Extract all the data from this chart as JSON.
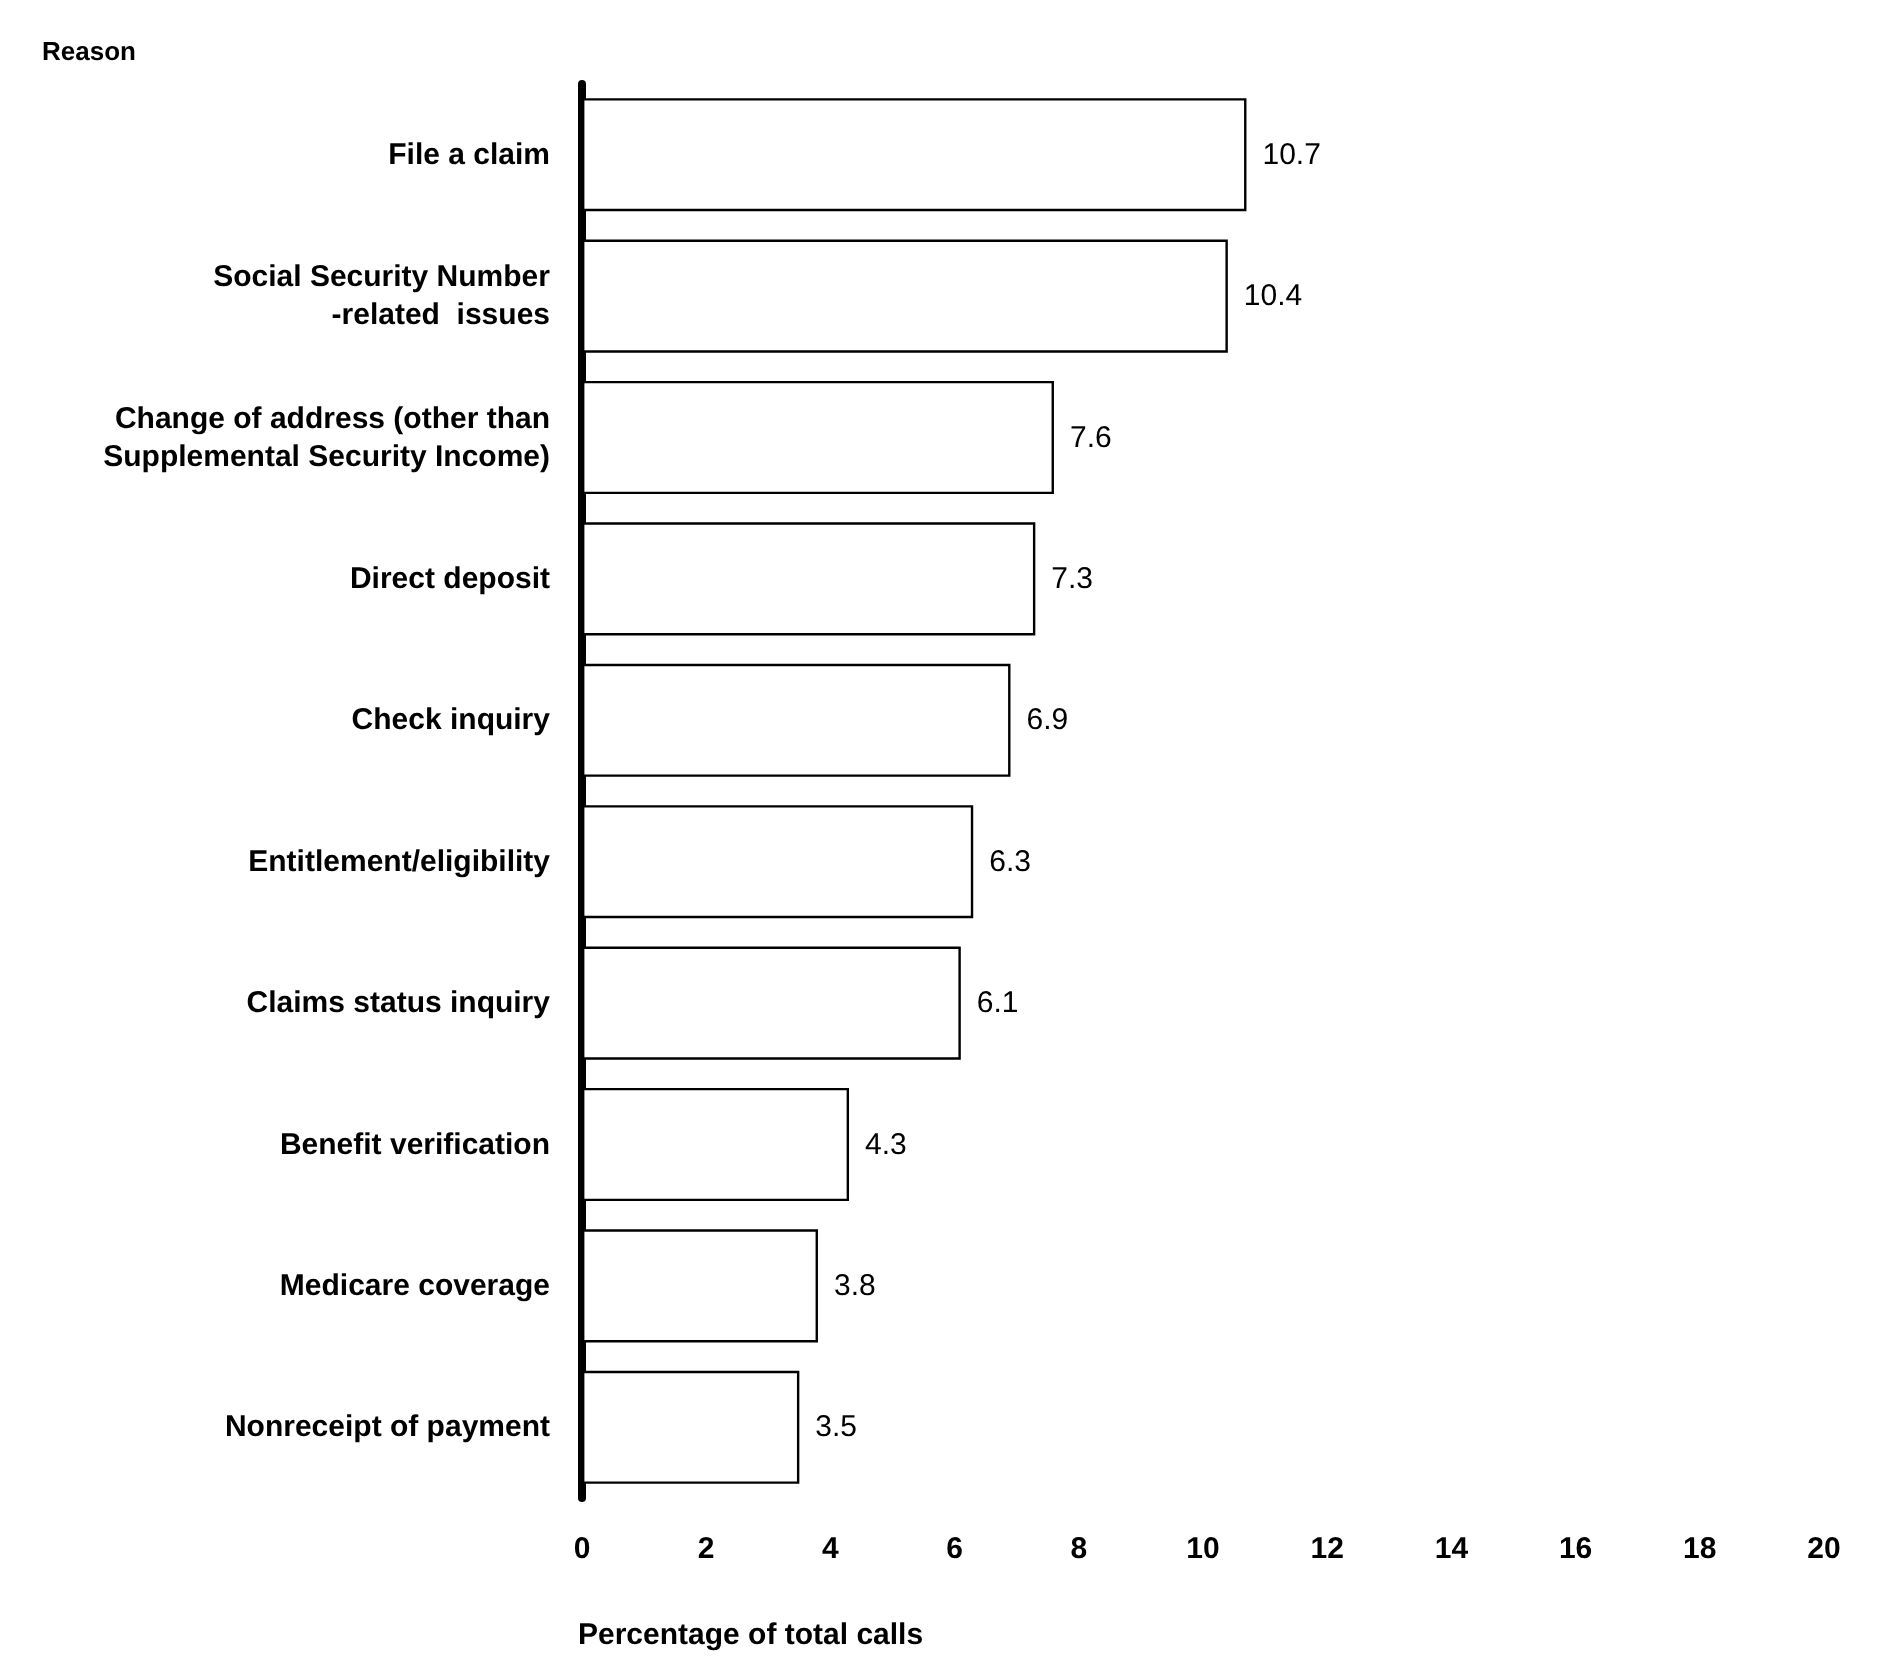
{
  "chart_data": {
    "type": "bar",
    "orientation": "horizontal",
    "ylabel": "Reason",
    "xlabel": "Percentage of total calls",
    "categories": [
      "File a claim",
      "Social Security Number\n-related  issues",
      "Change of address (other than\nSupplemental Security Income)",
      "Direct deposit",
      "Check inquiry",
      "Entitlement/eligibility",
      "Claims status inquiry",
      "Benefit verification",
      "Medicare coverage",
      "Nonreceipt of payment"
    ],
    "values": [
      10.7,
      10.4,
      7.6,
      7.3,
      6.9,
      6.3,
      6.1,
      4.3,
      3.8,
      3.5
    ],
    "color": "#ffffff",
    "xlim": [
      0,
      20
    ],
    "xticks": [
      0,
      2,
      4,
      6,
      8,
      10,
      12,
      14,
      16,
      18,
      20
    ],
    "data_labels": true,
    "grid": false
  }
}
